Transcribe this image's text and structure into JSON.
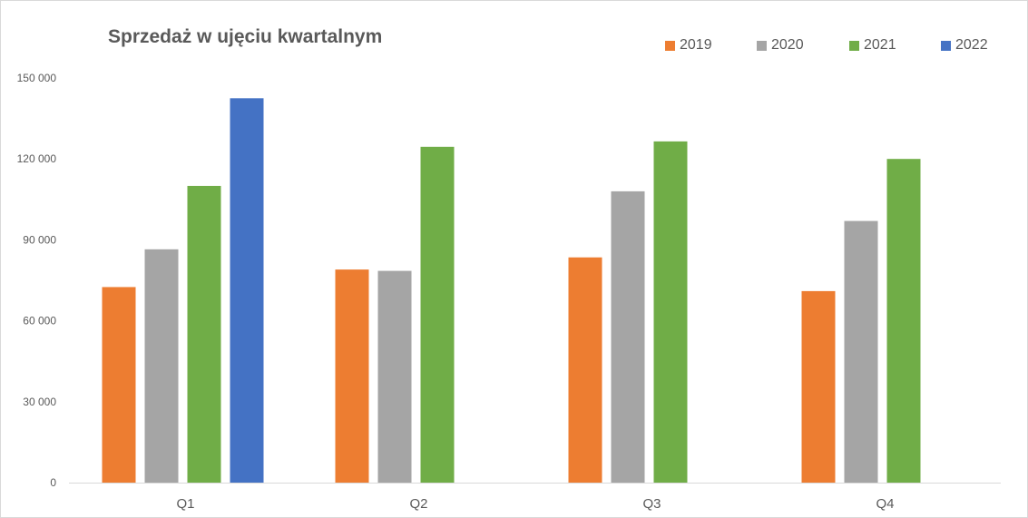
{
  "chart_data": {
    "type": "bar",
    "title": "Sprzedaż w ujęciu kwartalnym",
    "categories": [
      "Q1",
      "Q2",
      "Q3",
      "Q4"
    ],
    "series": [
      {
        "name": "2019",
        "color": "#ED7D31",
        "values": [
          72500,
          79000,
          83500,
          71000
        ]
      },
      {
        "name": "2020",
        "color": "#A5A5A5",
        "values": [
          86500,
          78500,
          108000,
          97000
        ]
      },
      {
        "name": "2021",
        "color": "#70AD47",
        "values": [
          110000,
          124500,
          126500,
          120000
        ]
      },
      {
        "name": "2022",
        "color": "#4472C4",
        "values": [
          142500,
          null,
          null,
          null
        ]
      }
    ],
    "ylim": [
      0,
      150000
    ],
    "yticks": [
      0,
      30000,
      60000,
      90000,
      120000,
      150000
    ],
    "ytick_labels": [
      "0",
      "30 000",
      "60 000",
      "90 000",
      "120 000",
      "150 000"
    ],
    "xlabel": "",
    "ylabel": "",
    "grid": false,
    "legend_position": "top-right"
  }
}
